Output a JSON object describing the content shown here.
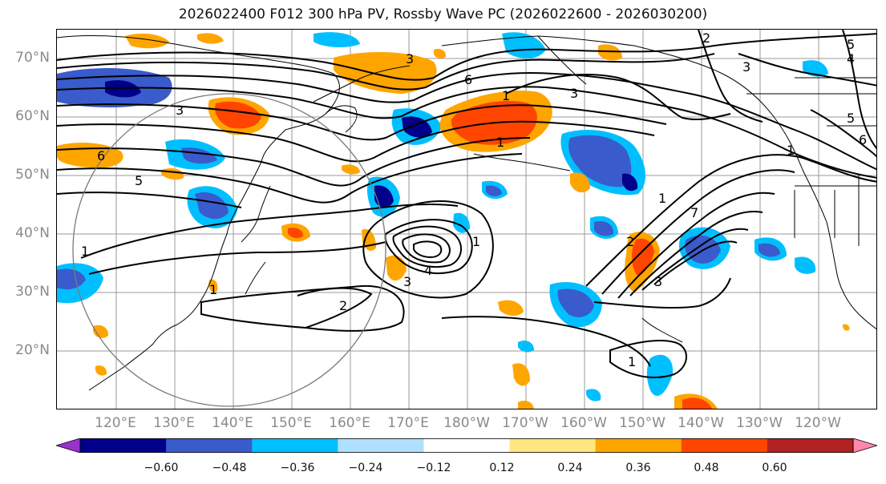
{
  "title": "2026022400 F012 300 hPa PV, Rossby Wave PC (2026022600 - 2026030200)",
  "lat_labels": [
    "70°N",
    "60°N",
    "50°N",
    "40°N",
    "30°N",
    "20°N"
  ],
  "lon_labels": [
    "120°E",
    "130°E",
    "140°E",
    "150°E",
    "160°E",
    "170°E",
    "180°W",
    "170°W",
    "160°W",
    "150°W",
    "140°W",
    "130°W",
    "120°W"
  ],
  "contour_labels": [
    "2",
    "5",
    "4",
    "3",
    "3",
    "6",
    "3",
    "1",
    "5",
    "6",
    "3",
    "1",
    "1",
    "6",
    "5",
    "1",
    "4",
    "3",
    "1",
    "2",
    "1",
    "1",
    "2",
    "7",
    "3",
    "1"
  ],
  "colorbar": {
    "ticks": [
      "−0.60",
      "−0.48",
      "−0.36",
      "−0.24",
      "−0.12",
      "0.12",
      "0.24",
      "0.36",
      "0.48",
      "0.60"
    ],
    "colors": [
      "#9932cc",
      "#00008b",
      "#3a5bcb",
      "#00bfff",
      "#b0e0ff",
      "#ffffff",
      "#ffe680",
      "#ffa500",
      "#ff4500",
      "#b22222",
      "#ff88aa"
    ]
  },
  "colors": {
    "neg_strong": "#00008b",
    "neg_mid": "#3a5bcb",
    "neg_weak": "#00bfff",
    "pos_weak": "#ffa500",
    "pos_mid": "#ff4500"
  }
}
